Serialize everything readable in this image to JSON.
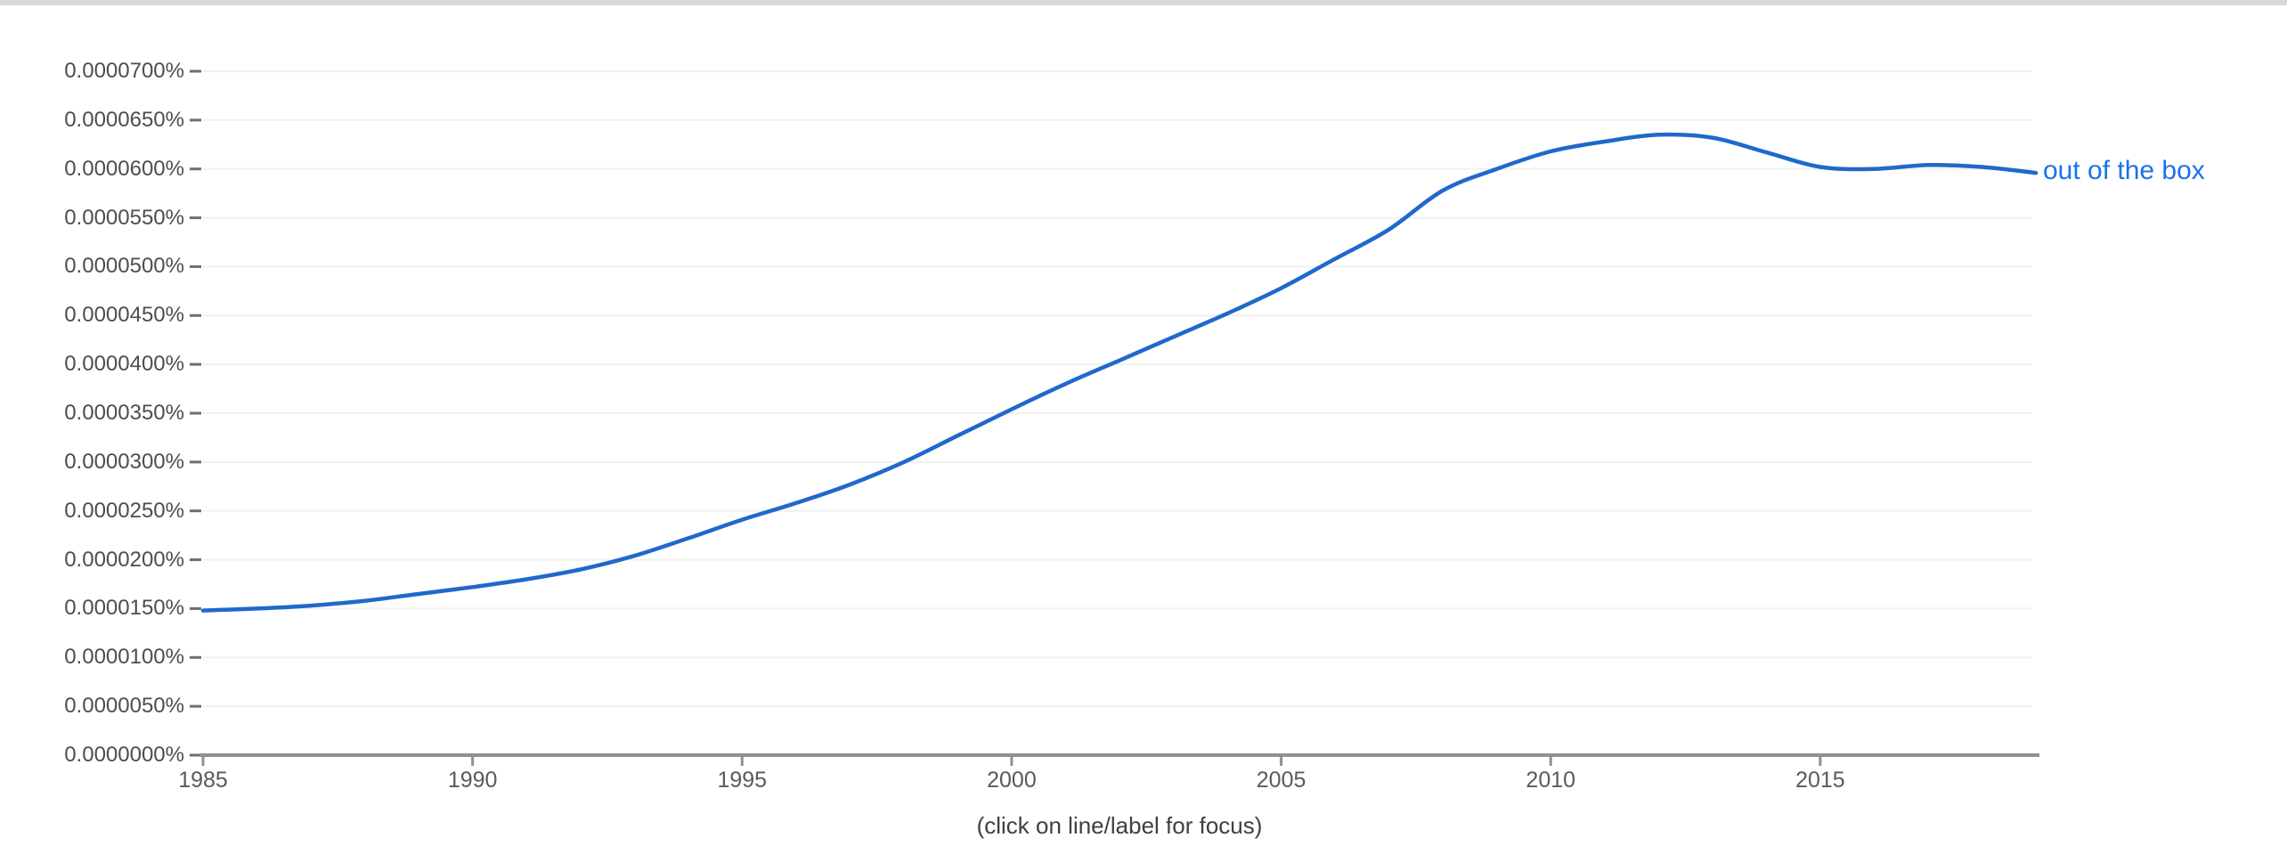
{
  "ui_colors": {
    "background": "#ffffff",
    "top_divider": "#d8d8d8",
    "grid": "#f0f0f0",
    "axis": "#909090",
    "tick_dash": "#6e6e6e",
    "y_label_text": "#4d4d4d",
    "x_label_text": "#5a5a5a",
    "caption_text": "#3f3f3f"
  },
  "chart_data": {
    "type": "line",
    "title": "",
    "xlabel": "",
    "ylabel": "",
    "caption": "(click on line/label for focus)",
    "grid": "horizontal-only",
    "legend_position": "inline-right-of-line-end",
    "xlim": [
      1985,
      2019
    ],
    "ylim": [
      0,
      7e-05
    ],
    "x_tick_labels": [
      "1985",
      "1990",
      "1995",
      "2000",
      "2005",
      "2010",
      "2015"
    ],
    "y_tick_labels_top_to_bottom": [
      "0.0000700%",
      "0.0000650%",
      "0.0000600%",
      "0.0000550%",
      "0.0000500%",
      "0.0000450%",
      "0.0000400%",
      "0.0000350%",
      "0.0000300%",
      "0.0000250%",
      "0.0000200%",
      "0.0000150%",
      "0.0000100%",
      "0.0000050%",
      "0.0000000%"
    ],
    "x": [
      1985,
      1986,
      1987,
      1988,
      1989,
      1990,
      1991,
      1992,
      1993,
      1994,
      1995,
      1996,
      1997,
      1998,
      1999,
      2000,
      2001,
      2002,
      2003,
      2004,
      2005,
      2006,
      2007,
      2008,
      2009,
      2010,
      2011,
      2012,
      2013,
      2014,
      2015,
      2016,
      2017,
      2018,
      2019
    ],
    "series": [
      {
        "name": "out of the box",
        "color": "#2068cc",
        "label_color": "#1a73e8",
        "values": [
          1.48e-05,
          1.5e-05,
          1.53e-05,
          1.58e-05,
          1.65e-05,
          1.72e-05,
          1.8e-05,
          1.9e-05,
          2.04e-05,
          2.22e-05,
          2.41e-05,
          2.58e-05,
          2.77e-05,
          3e-05,
          3.27e-05,
          3.54e-05,
          3.8e-05,
          4.04e-05,
          4.28e-05,
          4.52e-05,
          4.78e-05,
          5.08e-05,
          5.38e-05,
          5.78e-05,
          6e-05,
          6.18e-05,
          6.28e-05,
          6.35e-05,
          6.32e-05,
          6.17e-05,
          6.02e-05,
          6e-05,
          6.04e-05,
          6.02e-05,
          5.96e-05
        ]
      }
    ]
  }
}
